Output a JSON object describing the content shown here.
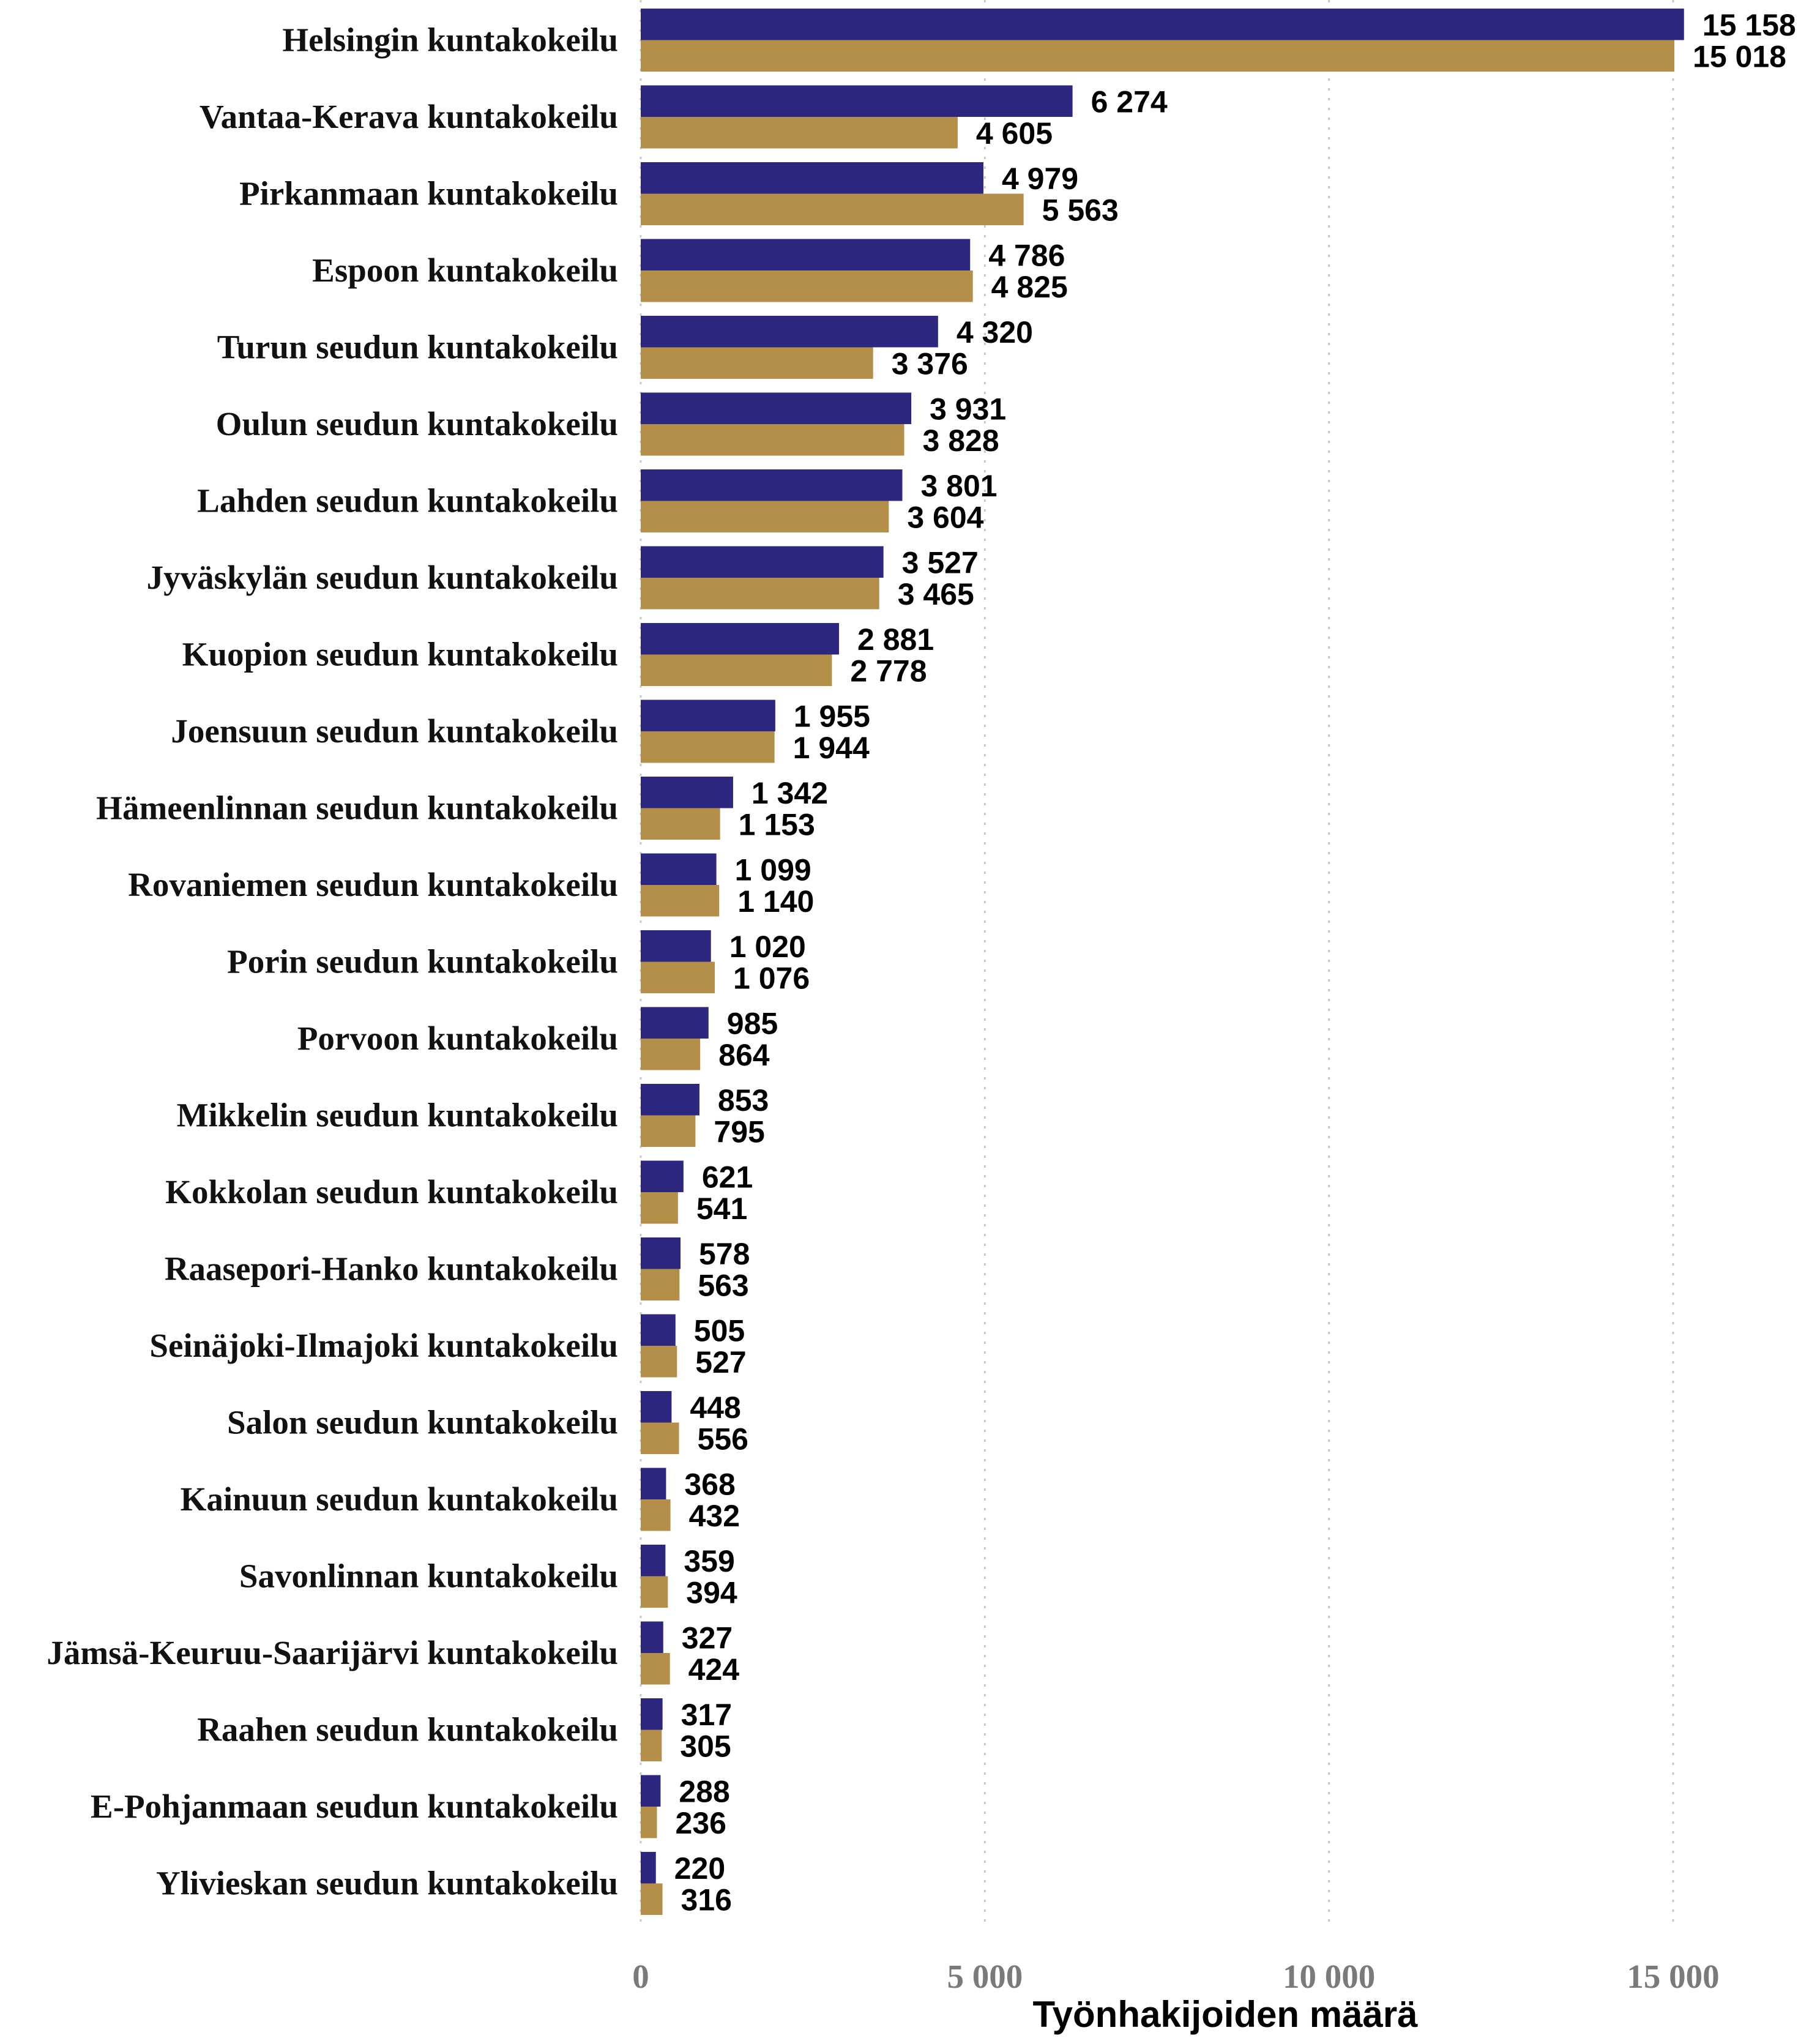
{
  "chart_data": {
    "type": "bar",
    "orientation": "horizontal",
    "categories": [
      "Helsingin kuntakokeilu",
      "Vantaa-Kerava kuntakokeilu",
      "Pirkanmaan kuntakokeilu",
      "Espoon kuntakokeilu",
      "Turun seudun kuntakokeilu",
      "Oulun seudun kuntakokeilu",
      "Lahden seudun kuntakokeilu",
      "Jyväskylän seudun kuntakokeilu",
      "Kuopion seudun kuntakokeilu",
      "Joensuun seudun kuntakokeilu",
      "Hämeenlinnan seudun kuntakokeilu",
      "Rovaniemen seudun kuntakokeilu",
      "Porin seudun kuntakokeilu",
      "Porvoon kuntakokeilu",
      "Mikkelin seudun kuntakokeilu",
      "Kokkolan seudun kuntakokeilu",
      "Raasepori-Hanko kuntakokeilu",
      "Seinäjoki-Ilmajoki kuntakokeilu",
      "Salon seudun kuntakokeilu",
      "Kainuun seudun kuntakokeilu",
      "Savonlinnan kuntakokeilu",
      "Jämsä-Keuruu-Saarijärvi kuntakokeilu",
      "Raahen seudun kuntakokeilu",
      "E-Pohjanmaan seudun kuntakokeilu",
      "Ylivieskan seudun kuntakokeilu"
    ],
    "series": [
      {
        "color": "#2e2780",
        "values": [
          15158,
          6274,
          4979,
          4786,
          4320,
          3931,
          3801,
          3527,
          2881,
          1955,
          1342,
          1099,
          1020,
          985,
          853,
          621,
          578,
          505,
          448,
          368,
          359,
          327,
          317,
          288,
          220
        ],
        "labels": [
          "15 158",
          "6 274",
          "4 979",
          "4 786",
          "4 320",
          "3 931",
          "3 801",
          "3 527",
          "2 881",
          "1 955",
          "1 342",
          "1 099",
          "1 020",
          "985",
          "853",
          "621",
          "578",
          "505",
          "448",
          "368",
          "359",
          "327",
          "317",
          "288",
          "220"
        ]
      },
      {
        "color": "#b38f4a",
        "values": [
          15018,
          4605,
          5563,
          4825,
          3376,
          3828,
          3604,
          3465,
          2778,
          1944,
          1153,
          1140,
          1076,
          864,
          795,
          541,
          563,
          527,
          556,
          432,
          394,
          424,
          305,
          236,
          316
        ],
        "labels": [
          "15 018",
          "4 605",
          "5 563",
          "4 825",
          "3 376",
          "3 828",
          "3 604",
          "3 465",
          "2 778",
          "1 944",
          "1 153",
          "1 140",
          "1 076",
          "864",
          "795",
          "541",
          "563",
          "527",
          "556",
          "432",
          "394",
          "424",
          "305",
          "236",
          "316"
        ]
      }
    ],
    "xlim": [
      0,
      16000
    ],
    "xticks": [
      0,
      5000,
      10000,
      15000
    ],
    "xtick_labels": [
      "0",
      "5 000",
      "10 000",
      "15 000"
    ],
    "xlabel": "Työnhakijoiden määrä",
    "ylabel": "",
    "title": "",
    "grid": "vertical dotted",
    "legend": "none"
  }
}
